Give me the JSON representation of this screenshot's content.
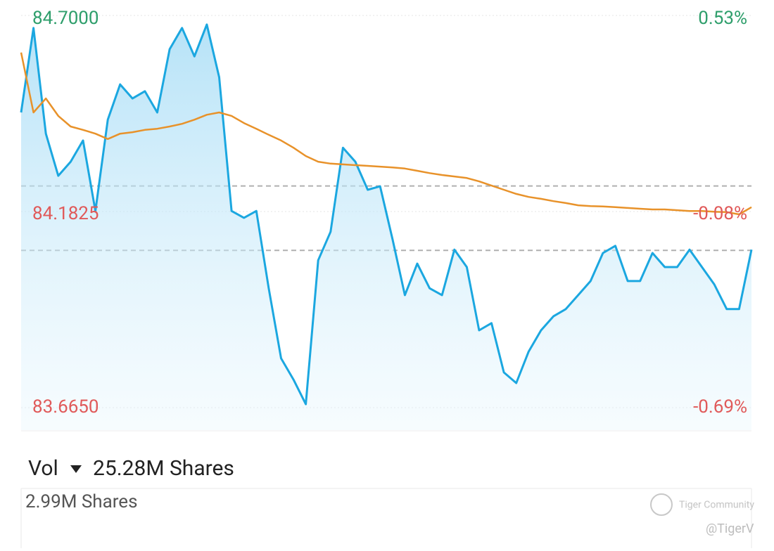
{
  "chart_data": {
    "type": "line",
    "ylim": [
      83.665,
      84.7
    ],
    "yticks": [
      {
        "value": 84.7,
        "label": "84.7000"
      },
      84.1825,
      {
        "value": 83.665,
        "label": "83.6650"
      }
    ],
    "y2lim": [
      -0.69,
      0.53
    ],
    "y2ticks": [
      {
        "value": 0.53,
        "label": "0.53%"
      },
      {
        "value": -0.08,
        "label": "-0.08%"
      },
      {
        "value": -0.69,
        "label": "-0.69%"
      }
    ],
    "ref_lines": [
      84.25,
      84.08
    ],
    "grid": true,
    "up_color": "#2e9e6b",
    "down_color": "#e05a5a",
    "series": [
      {
        "color": "#1ba7e0",
        "values": [
          84.444,
          84.667,
          84.388,
          84.277,
          84.314,
          84.37,
          84.184,
          84.425,
          84.518,
          84.481,
          84.5,
          84.444,
          84.611,
          84.667,
          84.592,
          84.676,
          84.537,
          84.184,
          84.166,
          84.184,
          83.98,
          83.795,
          83.739,
          83.674,
          84.054,
          84.129,
          84.351,
          84.314,
          84.24,
          84.249,
          84.11,
          83.962,
          84.045,
          83.98,
          83.962,
          84.082,
          84.036,
          83.869,
          83.888,
          83.758,
          83.73,
          83.813,
          83.869,
          83.906,
          83.925,
          83.962,
          83.999,
          84.073,
          84.092,
          83.999,
          83.999,
          84.073,
          84.036,
          84.036,
          84.082,
          84.036,
          83.99,
          83.925,
          83.925,
          84.082
        ]
      },
      {
        "color": "#e8922a",
        "values": [
          84.602,
          84.444,
          84.481,
          84.435,
          84.407,
          84.398,
          84.388,
          84.374,
          84.388,
          84.392,
          84.398,
          84.401,
          84.407,
          84.414,
          84.425,
          84.438,
          84.444,
          84.435,
          84.416,
          84.401,
          84.385,
          84.37,
          84.351,
          84.329,
          84.314,
          84.309,
          84.307,
          84.305,
          84.303,
          84.301,
          84.299,
          84.296,
          84.29,
          84.284,
          84.279,
          84.275,
          84.271,
          84.262,
          84.251,
          84.24,
          84.229,
          84.221,
          84.216,
          84.21,
          84.205,
          84.199,
          84.197,
          84.196,
          84.194,
          84.192,
          84.19,
          84.188,
          84.188,
          84.186,
          84.184,
          84.184,
          84.182,
          84.181,
          84.175,
          84.194
        ]
      }
    ]
  },
  "volume_panel": {
    "label": "Vol",
    "total": "25.28M Shares",
    "max_label": "2.99M Shares"
  },
  "watermark": {
    "brand": "Tiger Community",
    "handle": "@TigerV"
  }
}
